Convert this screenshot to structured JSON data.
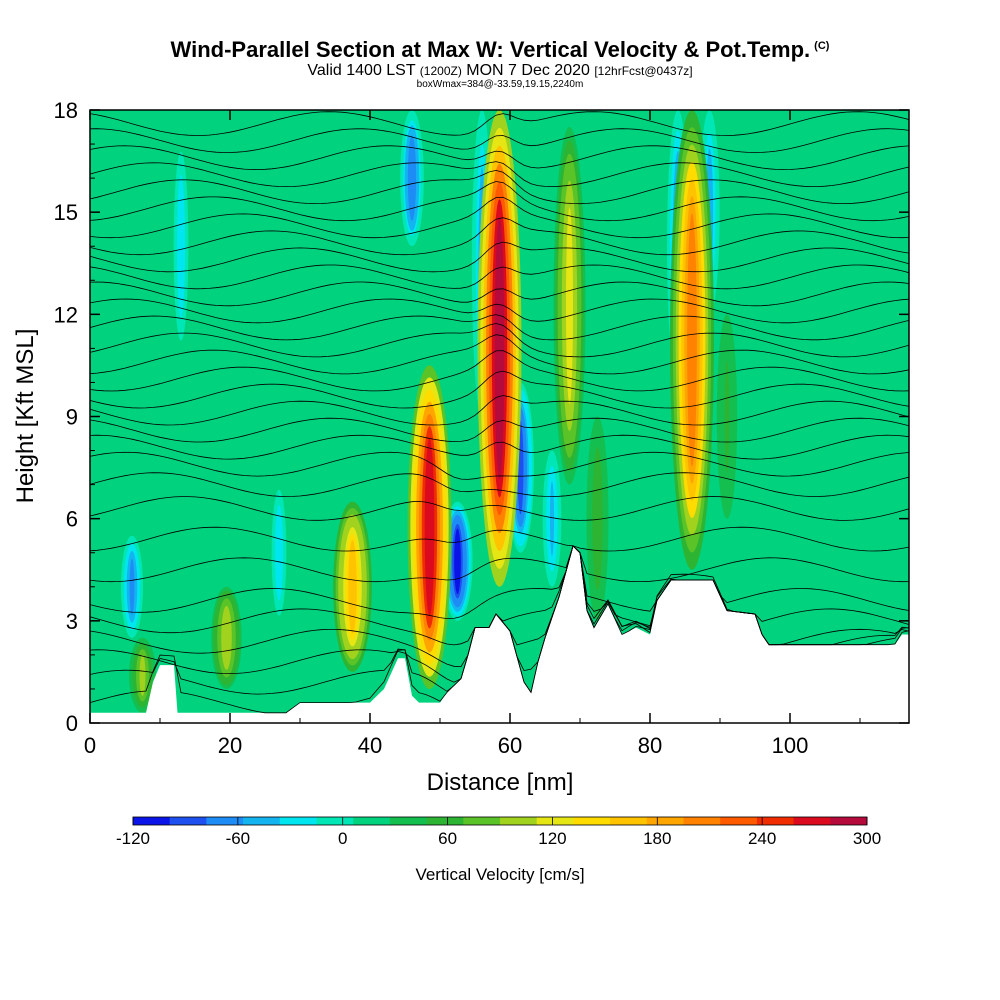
{
  "header": {
    "title": "Wind-Parallel Section at Max W: Vertical Velocity & Pot.Temp.",
    "copyright": "(C)",
    "valid_prefix": "Valid 1400 LST",
    "valid_utc": "(1200Z)",
    "valid_date": "MON 7 Dec 2020",
    "forecast": "[12hrFcst@0437z]",
    "box_info": "boxWmax=384@-33.59,19.15,2240m"
  },
  "chart_data": {
    "type": "heatmap",
    "xlabel": "Distance [nm]",
    "ylabel": "Height [Kft MSL]",
    "xlim": [
      0,
      117
    ],
    "ylim": [
      0,
      18
    ],
    "x_ticks": [
      0,
      20,
      40,
      60,
      80,
      100
    ],
    "y_ticks": [
      0,
      3,
      6,
      9,
      12,
      15,
      18
    ],
    "colorbar": {
      "title": "Vertical Velocity [cm/s]",
      "min": -120,
      "max": 300,
      "tick_labels": [
        "-120",
        "-60",
        "0",
        "60",
        "120",
        "180",
        "240",
        "300"
      ],
      "tick_values": [
        -120,
        -60,
        0,
        60,
        120,
        180,
        240,
        300
      ],
      "colors": [
        "#0a14e6",
        "#1e50f0",
        "#1e8cf5",
        "#14b4f0",
        "#00e6f0",
        "#00e6b4",
        "#00d27d",
        "#14bf50",
        "#2db432",
        "#5ac328",
        "#a0d21e",
        "#e6e614",
        "#ffdc00",
        "#ffc300",
        "#ffa500",
        "#ff8200",
        "#ff5a00",
        "#f02d00",
        "#dc0a1e",
        "#b40a3c"
      ]
    },
    "background_w": 20,
    "updrafts": [
      {
        "x": 7.5,
        "w": 90,
        "zmin": 0.3,
        "zmax": 2.5
      },
      {
        "x": 19.5,
        "w": 110,
        "zmin": 1.0,
        "zmax": 4.0
      },
      {
        "x": 37.5,
        "w": 160,
        "zmin": 1.5,
        "zmax": 6.5
      },
      {
        "x": 48.5,
        "w": 270,
        "zmin": 1.0,
        "zmax": 10.5
      },
      {
        "x": 58.5,
        "w": 300,
        "zmin": 4.0,
        "zmax": 18.0
      },
      {
        "x": 68.5,
        "w": 120,
        "zmin": 7.0,
        "zmax": 17.5
      },
      {
        "x": 72.5,
        "w": 60,
        "zmin": 3.0,
        "zmax": 9.0
      },
      {
        "x": 86.0,
        "w": 200,
        "zmin": 4.5,
        "zmax": 18.0
      },
      {
        "x": 91.0,
        "w": 50,
        "zmin": 6.0,
        "zmax": 12.0
      }
    ],
    "downdrafts": [
      {
        "x": 6.0,
        "w": -60,
        "zmin": 2.5,
        "zmax": 5.5
      },
      {
        "x": 13.0,
        "w": -30,
        "zmin": 11.0,
        "zmax": 17.0
      },
      {
        "x": 27.0,
        "w": -30,
        "zmin": 3.0,
        "zmax": 7.0
      },
      {
        "x": 46.0,
        "w": -70,
        "zmin": 14.0,
        "zmax": 18.0
      },
      {
        "x": 52.5,
        "w": -110,
        "zmin": 3.0,
        "zmax": 6.5
      },
      {
        "x": 56.0,
        "w": -50,
        "zmin": 9.0,
        "zmax": 18.0
      },
      {
        "x": 61.5,
        "w": -90,
        "zmin": 5.0,
        "zmax": 10.0
      },
      {
        "x": 66.0,
        "w": -40,
        "zmin": 4.0,
        "zmax": 8.0
      },
      {
        "x": 84.0,
        "w": -60,
        "zmin": 10.0,
        "zmax": 18.0
      },
      {
        "x": 88.5,
        "w": -50,
        "zmin": 12.0,
        "zmax": 18.0
      }
    ],
    "terrain": [
      [
        0,
        0.3
      ],
      [
        8,
        0.3
      ],
      [
        9,
        1.2
      ],
      [
        10,
        1.7
      ],
      [
        12,
        1.7
      ],
      [
        12.5,
        0.3
      ],
      [
        28,
        0.3
      ],
      [
        30,
        0.6
      ],
      [
        40,
        0.6
      ],
      [
        42,
        1.0
      ],
      [
        44,
        1.9
      ],
      [
        45,
        1.9
      ],
      [
        46,
        0.8
      ],
      [
        47,
        0.6
      ],
      [
        50,
        0.6
      ],
      [
        51,
        0.9
      ],
      [
        53,
        1.3
      ],
      [
        54,
        2.0
      ],
      [
        55,
        2.8
      ],
      [
        57,
        2.8
      ],
      [
        58,
        3.2
      ],
      [
        60,
        2.7
      ],
      [
        62,
        1.2
      ],
      [
        63,
        0.9
      ],
      [
        64,
        1.8
      ],
      [
        65,
        2.5
      ],
      [
        67,
        3.7
      ],
      [
        69,
        5.2
      ],
      [
        70,
        5.0
      ],
      [
        71,
        3.3
      ],
      [
        72,
        2.8
      ],
      [
        74,
        3.5
      ],
      [
        76,
        2.6
      ],
      [
        78,
        2.8
      ],
      [
        80,
        2.6
      ],
      [
        81,
        3.6
      ],
      [
        83,
        4.2
      ],
      [
        89,
        4.2
      ],
      [
        91,
        3.3
      ],
      [
        95,
        3.2
      ],
      [
        96,
        2.6
      ],
      [
        97,
        2.3
      ],
      [
        115,
        2.3
      ],
      [
        116,
        2.6
      ],
      [
        117,
        2.6
      ]
    ],
    "theta_contour_heights": [
      0.6,
      1.2,
      1.8,
      2.4,
      3.0,
      3.6,
      4.5,
      5.4,
      6.3,
      7.0,
      7.6,
      8.1,
      8.6,
      9.1,
      9.6,
      10.1,
      10.6,
      11.1,
      11.6,
      12.1,
      12.6,
      13.1,
      13.6,
      14.1,
      14.6,
      15.1,
      15.6,
      16.1,
      16.6,
      17.1,
      17.6
    ]
  }
}
